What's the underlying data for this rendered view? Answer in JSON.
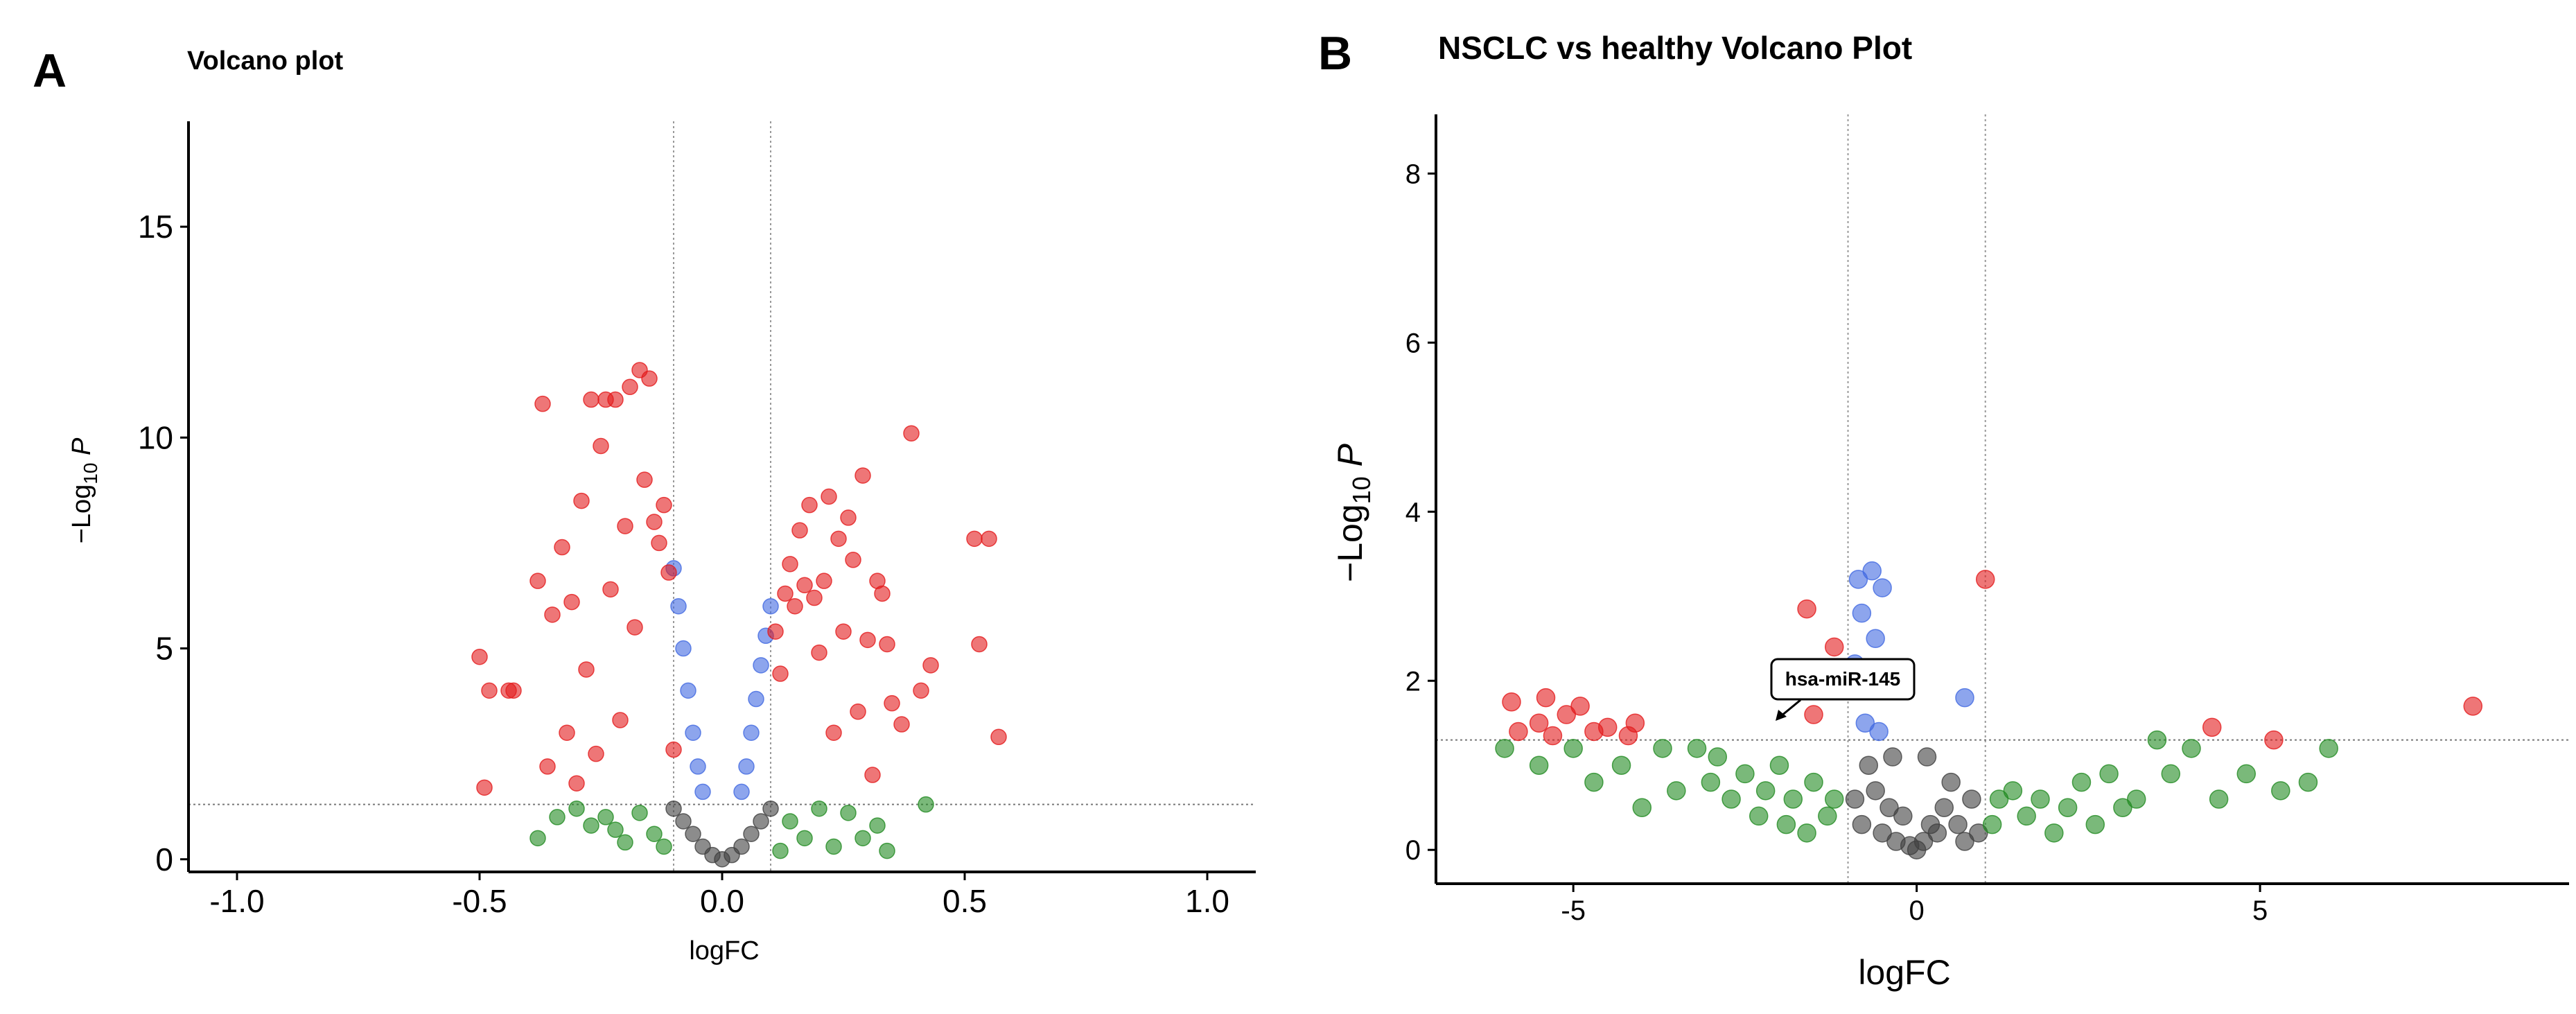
{
  "colors": {
    "up_down_sig": "#e31a1c",
    "p_only": "#4169e1",
    "fc_only": "#228b22",
    "not_sig": "#404040"
  },
  "panel_a": {
    "letter": "A",
    "title": "Volcano plot",
    "xlabel": "logFC",
    "ylabel_main": "−Log",
    "ylabel_sub": "10",
    "ylabel_var": " P"
  },
  "panel_b": {
    "letter": "B",
    "title": "NSCLC vs healthy Volcano Plot",
    "xlabel": "logFC",
    "ylabel_main": "−Log",
    "ylabel_sub": "10",
    "ylabel_var": " P",
    "annotation": "hsa-miR-145"
  },
  "chart_data": [
    {
      "type": "scatter",
      "title": "Volcano plot",
      "xlabel": "logFC",
      "ylabel": "−Log10 P",
      "xlim": [
        -1.1,
        1.1
      ],
      "ylim": [
        -0.3,
        17.5
      ],
      "xticks": [
        -1.0,
        -0.5,
        0.0,
        0.5,
        1.0
      ],
      "xtick_labels": [
        "-1.0",
        "-0.5",
        "0.0",
        "0.5",
        "1.0"
      ],
      "yticks": [
        0,
        5,
        10,
        15
      ],
      "ytick_labels": [
        "0",
        "5",
        "10",
        "15"
      ],
      "grid": false,
      "thresholds": {
        "logFC": [
          -0.1,
          0.1
        ],
        "neg_log10_p": 1.3
      },
      "legend": "none",
      "series": [
        {
          "category": "p_and_fc",
          "points": [
            [
              -0.5,
              4.8
            ],
            [
              -0.49,
              1.7
            ],
            [
              -0.48,
              4.0
            ],
            [
              -0.44,
              4.0
            ],
            [
              -0.43,
              4.0
            ],
            [
              -0.38,
              6.6
            ],
            [
              -0.37,
              10.8
            ],
            [
              -0.36,
              2.2
            ],
            [
              -0.35,
              5.8
            ],
            [
              -0.33,
              7.4
            ],
            [
              -0.32,
              3.0
            ],
            [
              -0.31,
              6.1
            ],
            [
              -0.3,
              1.8
            ],
            [
              -0.29,
              8.5
            ],
            [
              -0.28,
              4.5
            ],
            [
              -0.27,
              10.9
            ],
            [
              -0.26,
              2.5
            ],
            [
              -0.25,
              9.8
            ],
            [
              -0.24,
              10.9
            ],
            [
              -0.23,
              6.4
            ],
            [
              -0.22,
              10.9
            ],
            [
              -0.21,
              3.3
            ],
            [
              -0.2,
              7.9
            ],
            [
              -0.19,
              11.2
            ],
            [
              -0.18,
              5.5
            ],
            [
              -0.17,
              11.6
            ],
            [
              -0.16,
              9.0
            ],
            [
              -0.15,
              11.4
            ],
            [
              -0.14,
              8.0
            ],
            [
              -0.13,
              7.5
            ],
            [
              -0.12,
              8.4
            ],
            [
              -0.11,
              6.8
            ],
            [
              -0.1,
              2.6
            ],
            [
              0.11,
              5.4
            ],
            [
              0.12,
              4.4
            ],
            [
              0.13,
              6.3
            ],
            [
              0.14,
              7.0
            ],
            [
              0.15,
              6.0
            ],
            [
              0.16,
              7.8
            ],
            [
              0.17,
              6.5
            ],
            [
              0.18,
              8.4
            ],
            [
              0.19,
              6.2
            ],
            [
              0.2,
              4.9
            ],
            [
              0.21,
              6.6
            ],
            [
              0.22,
              8.6
            ],
            [
              0.23,
              3.0
            ],
            [
              0.24,
              7.6
            ],
            [
              0.25,
              5.4
            ],
            [
              0.26,
              8.1
            ],
            [
              0.27,
              7.1
            ],
            [
              0.28,
              3.5
            ],
            [
              0.29,
              9.1
            ],
            [
              0.3,
              5.2
            ],
            [
              0.31,
              2.0
            ],
            [
              0.32,
              6.6
            ],
            [
              0.33,
              6.3
            ],
            [
              0.34,
              5.1
            ],
            [
              0.35,
              3.7
            ],
            [
              0.37,
              3.2
            ],
            [
              0.39,
              10.1
            ],
            [
              0.41,
              4.0
            ],
            [
              0.43,
              4.6
            ],
            [
              0.52,
              7.6
            ],
            [
              0.53,
              5.1
            ],
            [
              0.55,
              7.6
            ],
            [
              0.57,
              2.9
            ]
          ]
        },
        {
          "category": "p_only",
          "points": [
            [
              -0.1,
              6.9
            ],
            [
              -0.09,
              6.0
            ],
            [
              -0.08,
              5.0
            ],
            [
              -0.07,
              4.0
            ],
            [
              -0.06,
              3.0
            ],
            [
              -0.05,
              2.2
            ],
            [
              -0.04,
              1.6
            ],
            [
              0.04,
              1.6
            ],
            [
              0.05,
              2.2
            ],
            [
              0.06,
              3.0
            ],
            [
              0.07,
              3.8
            ],
            [
              0.08,
              4.6
            ],
            [
              0.09,
              5.3
            ],
            [
              0.1,
              6.0
            ]
          ]
        },
        {
          "category": "fc_only",
          "points": [
            [
              -0.38,
              0.5
            ],
            [
              -0.34,
              1.0
            ],
            [
              -0.3,
              1.2
            ],
            [
              -0.27,
              0.8
            ],
            [
              -0.24,
              1.0
            ],
            [
              -0.22,
              0.7
            ],
            [
              -0.2,
              0.4
            ],
            [
              -0.17,
              1.1
            ],
            [
              -0.14,
              0.6
            ],
            [
              -0.12,
              0.3
            ],
            [
              0.12,
              0.2
            ],
            [
              0.14,
              0.9
            ],
            [
              0.17,
              0.5
            ],
            [
              0.2,
              1.2
            ],
            [
              0.23,
              0.3
            ],
            [
              0.26,
              1.1
            ],
            [
              0.29,
              0.5
            ],
            [
              0.32,
              0.8
            ],
            [
              0.34,
              0.2
            ],
            [
              0.42,
              1.3
            ]
          ]
        },
        {
          "category": "not_significant",
          "points": [
            [
              -0.1,
              1.2
            ],
            [
              -0.08,
              0.9
            ],
            [
              -0.06,
              0.6
            ],
            [
              -0.04,
              0.3
            ],
            [
              -0.02,
              0.1
            ],
            [
              0.0,
              0.0
            ],
            [
              0.02,
              0.1
            ],
            [
              0.04,
              0.3
            ],
            [
              0.06,
              0.6
            ],
            [
              0.08,
              0.9
            ],
            [
              0.1,
              1.2
            ]
          ]
        }
      ]
    },
    {
      "type": "scatter",
      "title": "NSCLC vs healthy Volcano Plot",
      "xlabel": "logFC",
      "ylabel": "−Log10 P",
      "xlim": [
        -7.0,
        9.5
      ],
      "ylim": [
        -0.4,
        8.7
      ],
      "xticks": [
        -5,
        0,
        5
      ],
      "xtick_labels": [
        "-5",
        "0",
        "5"
      ],
      "yticks": [
        0,
        2,
        4,
        6,
        8
      ],
      "ytick_labels": [
        "0",
        "2",
        "4",
        "6",
        "8"
      ],
      "grid": false,
      "thresholds": {
        "logFC": [
          -1,
          1
        ],
        "neg_log10_p": 1.3
      },
      "legend": "none",
      "annotations": [
        {
          "text": "hsa-miR-145",
          "x": -1.05,
          "y": 1.75
        }
      ],
      "series": [
        {
          "category": "p_and_fc",
          "points": [
            [
              -5.9,
              1.75
            ],
            [
              -5.8,
              1.4
            ],
            [
              -5.5,
              1.5
            ],
            [
              -5.4,
              1.8
            ],
            [
              -5.3,
              1.35
            ],
            [
              -5.1,
              1.6
            ],
            [
              -4.9,
              1.7
            ],
            [
              -4.7,
              1.4
            ],
            [
              -4.5,
              1.45
            ],
            [
              -4.2,
              1.35
            ],
            [
              -4.1,
              1.5
            ],
            [
              -1.6,
              2.85
            ],
            [
              -1.5,
              1.6
            ],
            [
              -1.2,
              2.4
            ],
            [
              1.0,
              3.2
            ],
            [
              4.3,
              1.45
            ],
            [
              5.2,
              1.3
            ],
            [
              8.1,
              1.7
            ]
          ]
        },
        {
          "category": "p_only",
          "points": [
            [
              -0.9,
              2.2
            ],
            [
              -0.85,
              3.2
            ],
            [
              -0.8,
              2.8
            ],
            [
              -0.75,
              1.5
            ],
            [
              -0.7,
              2.0
            ],
            [
              -0.65,
              3.3
            ],
            [
              -0.6,
              2.5
            ],
            [
              -0.55,
              1.4
            ],
            [
              -0.5,
              3.1
            ],
            [
              -0.45,
              1.9
            ],
            [
              0.7,
              1.8
            ]
          ]
        },
        {
          "category": "fc_only",
          "points": [
            [
              -6.0,
              1.2
            ],
            [
              -5.5,
              1.0
            ],
            [
              -5.0,
              1.2
            ],
            [
              -4.7,
              0.8
            ],
            [
              -4.3,
              1.0
            ],
            [
              -4.0,
              0.5
            ],
            [
              -3.7,
              1.2
            ],
            [
              -3.5,
              0.7
            ],
            [
              -3.2,
              1.2
            ],
            [
              -3.0,
              0.8
            ],
            [
              -2.9,
              1.1
            ],
            [
              -2.7,
              0.6
            ],
            [
              -2.5,
              0.9
            ],
            [
              -2.3,
              0.4
            ],
            [
              -2.2,
              0.7
            ],
            [
              -2.0,
              1.0
            ],
            [
              -1.9,
              0.3
            ],
            [
              -1.8,
              0.6
            ],
            [
              -1.6,
              0.2
            ],
            [
              -1.5,
              0.8
            ],
            [
              -1.3,
              0.4
            ],
            [
              -1.2,
              0.6
            ],
            [
              1.1,
              0.3
            ],
            [
              1.2,
              0.6
            ],
            [
              1.4,
              0.7
            ],
            [
              1.6,
              0.4
            ],
            [
              1.8,
              0.6
            ],
            [
              2.0,
              0.2
            ],
            [
              2.2,
              0.5
            ],
            [
              2.4,
              0.8
            ],
            [
              2.6,
              0.3
            ],
            [
              2.8,
              0.9
            ],
            [
              3.0,
              0.5
            ],
            [
              3.2,
              0.6
            ],
            [
              3.5,
              1.3
            ],
            [
              3.7,
              0.9
            ],
            [
              4.0,
              1.2
            ],
            [
              4.4,
              0.6
            ],
            [
              4.8,
              0.9
            ],
            [
              5.3,
              0.7
            ],
            [
              5.7,
              0.8
            ],
            [
              6.0,
              1.2
            ]
          ]
        },
        {
          "category": "not_significant",
          "points": [
            [
              -0.9,
              0.6
            ],
            [
              -0.8,
              0.3
            ],
            [
              -0.7,
              1.0
            ],
            [
              -0.6,
              0.7
            ],
            [
              -0.5,
              0.2
            ],
            [
              -0.4,
              0.5
            ],
            [
              -0.3,
              0.1
            ],
            [
              -0.2,
              0.4
            ],
            [
              -0.1,
              0.05
            ],
            [
              0.0,
              0.0
            ],
            [
              0.1,
              0.1
            ],
            [
              0.2,
              0.3
            ],
            [
              0.3,
              0.2
            ],
            [
              0.4,
              0.5
            ],
            [
              0.5,
              0.8
            ],
            [
              0.6,
              0.3
            ],
            [
              0.7,
              0.1
            ],
            [
              0.8,
              0.6
            ],
            [
              0.9,
              0.2
            ],
            [
              -0.35,
              1.1
            ],
            [
              0.15,
              1.1
            ]
          ]
        }
      ]
    }
  ]
}
